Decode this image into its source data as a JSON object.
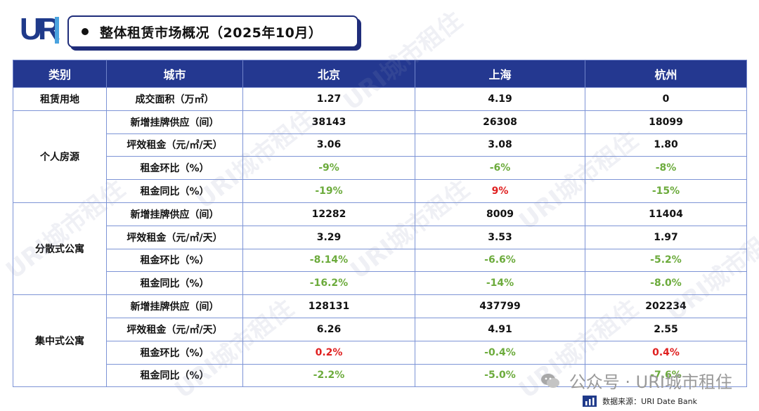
{
  "logo": {
    "u": "U",
    "r": "R",
    "i": "I"
  },
  "title": "整体租赁市场概况（2025年10月）",
  "table": {
    "headers": [
      "类别",
      "城市",
      "北京",
      "上海",
      "杭州"
    ],
    "land": {
      "category": "租赁用地",
      "metric": "成交面积（万㎡）",
      "values": [
        "1.27",
        "4.19",
        "0"
      ]
    },
    "groups": [
      {
        "category": "个人房源",
        "rows": [
          {
            "metric": "新增挂牌供应（间）",
            "values": [
              "38143",
              "26308",
              "18099"
            ]
          },
          {
            "metric": "坪效租金（元/㎡/天）",
            "values": [
              "3.06",
              "3.08",
              "1.80"
            ]
          },
          {
            "metric": "租金环比（%）",
            "values": [
              "-9%",
              "-6%",
              "-8%"
            ]
          },
          {
            "metric": "租金同比（%）",
            "values": [
              "-19%",
              "9%",
              "-15%"
            ]
          }
        ]
      },
      {
        "category": "分散式公寓",
        "rows": [
          {
            "metric": "新增挂牌供应（间）",
            "values": [
              "12282",
              "8009",
              "11404"
            ]
          },
          {
            "metric": "坪效租金（元/㎡/天）",
            "values": [
              "3.29",
              "3.53",
              "1.97"
            ]
          },
          {
            "metric": "租金环比（%）",
            "values": [
              "-8.14%",
              "-6.6%",
              "-5.2%"
            ]
          },
          {
            "metric": "租金同比（%）",
            "values": [
              "-16.2%",
              "-14%",
              "-8.0%"
            ]
          }
        ]
      },
      {
        "category": "集中式公寓",
        "rows": [
          {
            "metric": "新增挂牌供应（间）",
            "values": [
              "128131",
              "437799",
              "202234"
            ]
          },
          {
            "metric": "坪效租金（元/㎡/天）",
            "values": [
              "6.26",
              "4.91",
              "2.55"
            ]
          },
          {
            "metric": "租金环比（%）",
            "values": [
              "0.2%",
              "-0.4%",
              "0.4%"
            ]
          },
          {
            "metric": "租金同比（%）",
            "values": [
              "-2.2%",
              "-5.0%",
              "-7.6%"
            ]
          }
        ]
      }
    ]
  },
  "colors": {
    "header_bg": "#243890",
    "negative": "#6cab3c",
    "positive": "#e02020"
  },
  "watermark": "URI城市租住",
  "wechat_label": "公众号 · URI城市租住",
  "source": "数据来源：URI Date Bank"
}
